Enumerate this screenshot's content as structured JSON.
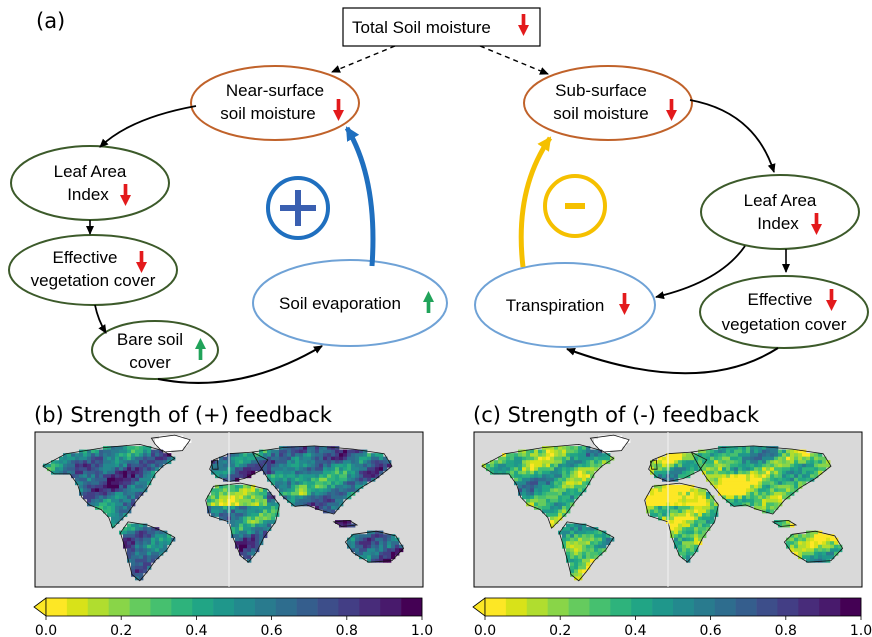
{
  "panel_a": {
    "label": "(a)",
    "total": "Total Soil moisture",
    "near_surface": [
      "Near-surface",
      "soil moisture"
    ],
    "sub_surface": [
      "Sub-surface",
      "soil moisture"
    ],
    "lai_left": [
      "Leaf Area",
      "Index"
    ],
    "lai_right": [
      "Leaf Area",
      "Index"
    ],
    "evc_left": [
      "Effective",
      "vegetation cover"
    ],
    "evc_right": [
      "Effective",
      "vegetation cover"
    ],
    "bare_soil": [
      "Bare soil",
      "cover"
    ],
    "soil_evap": "Soil evaporation",
    "transpiration": "Transpiration",
    "plus_sign": "+",
    "minus_sign": "-"
  },
  "panel_b": {
    "title": "(b) Strength of (+) feedback"
  },
  "panel_c": {
    "title": "(c) Strength of (-) feedback"
  },
  "colorbar": {
    "ticks": [
      "0.0",
      "0.2",
      "0.4",
      "0.6",
      "0.8",
      "1.0"
    ],
    "range": [
      0,
      1
    ],
    "extend": "min"
  },
  "colors": {
    "soil_node": "#c0622a",
    "veg_node": "#3c5a2a",
    "flux_node": "#6fa2d6",
    "positive": "#1f6fbf",
    "negative": "#f5c000",
    "down_arrow": "#e31a1c",
    "up_arrow": "#21a35a",
    "map_bg": "#d9d9d9",
    "viridis": [
      "#fde725",
      "#d8e219",
      "#b0dd2f",
      "#89d548",
      "#65cb5e",
      "#46c06f",
      "#2eb37c",
      "#21a585",
      "#1f978b",
      "#23898e",
      "#297b8e",
      "#2e6d8e",
      "#355e8d",
      "#3d4e8a",
      "#433e85",
      "#482c7a",
      "#481a6c",
      "#440154"
    ]
  }
}
